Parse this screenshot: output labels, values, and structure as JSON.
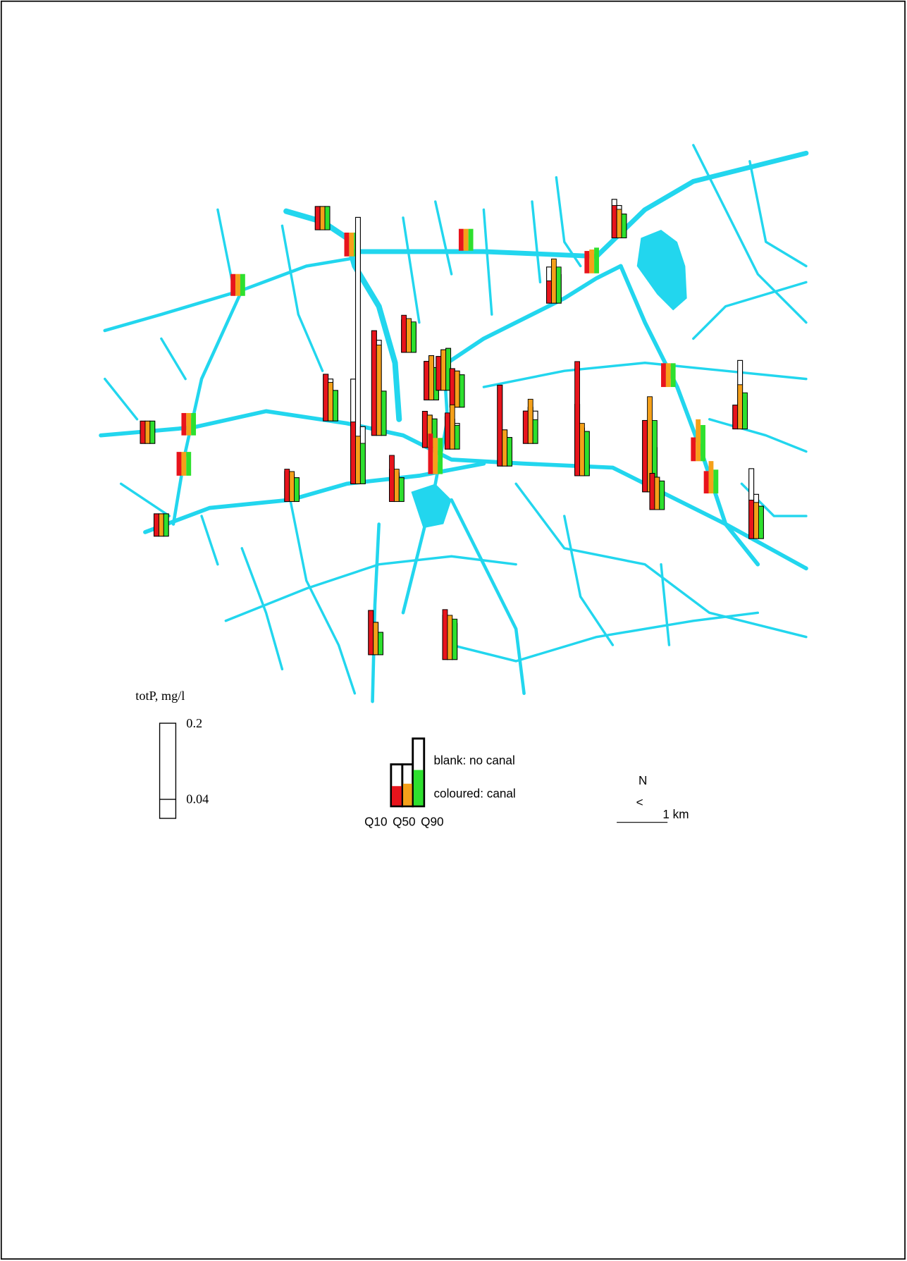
{
  "legend": {
    "title": "totP, mg/l",
    "ticks": [
      0.2,
      0.04
    ]
  },
  "key": {
    "blank": "blank: no canal",
    "coloured": "coloured: canal",
    "quantiles": [
      "Q10",
      "Q50",
      "Q90"
    ],
    "colors": [
      "#e8141c",
      "#f5a01a",
      "#2ee02e"
    ]
  },
  "north": {
    "label": "N",
    "arrow": "<"
  },
  "scale_bar": "1 km",
  "stations": [
    {
      "canal": [
        0.049,
        0.049,
        0.049
      ],
      "no_canal": [
        0.049,
        0.049,
        0.049
      ]
    },
    {
      "canal": [
        0.05,
        0.05,
        0.05
      ]
    },
    {
      "canal": [
        0.046,
        0.046,
        0.046
      ]
    },
    {
      "canal": [
        0.046,
        0.046,
        0.046
      ]
    },
    {
      "canal": [
        0.047,
        0.047,
        0.047
      ],
      "no_canal": [
        0.047,
        0.047,
        0.047
      ]
    },
    {
      "canal": [
        0.047,
        0.047,
        0.047
      ]
    },
    {
      "canal": [
        0.05,
        0.05,
        0.05
      ]
    },
    {
      "canal": [
        0.047,
        0.047,
        0.047
      ],
      "no_canal": [
        0.047,
        0.047,
        0.047
      ]
    },
    {
      "canal": [
        0.047,
        0.093,
        0.076
      ],
      "no_canal": [
        0.076,
        0.068,
        0.06
      ]
    },
    {
      "canal": [
        0.047,
        0.05,
        0.054
      ]
    },
    {
      "canal": [
        0.068,
        0.06,
        0.05
      ],
      "no_canal": [
        0.081,
        0.068,
        0.05
      ]
    },
    {
      "canal": [
        0.078,
        0.071,
        0.064
      ],
      "no_canal": [
        0.068,
        0.064,
        0.061
      ]
    },
    {
      "canal": [
        0.098,
        0.081,
        0.064
      ],
      "no_canal": [
        0.098,
        0.088,
        0.064
      ]
    },
    {
      "canal": [
        0.13,
        0.1,
        0.085
      ],
      "no_canal": [
        0.22,
        0.56,
        0.12
      ]
    },
    {
      "canal": [
        0.22,
        0.19,
        0.093
      ],
      "no_canal": [
        0.22,
        0.2,
        0.093
      ]
    },
    {
      "canal": [
        0.081,
        0.093,
        0.068
      ],
      "no_canal": [
        0.081,
        0.093,
        0.068
      ]
    },
    {
      "canal": [
        0.071,
        0.085,
        0.088
      ],
      "no_canal": [
        0.071,
        0.085,
        0.088
      ]
    },
    {
      "canal": [
        0.081,
        0.076,
        0.068
      ],
      "no_canal": [
        0.081,
        0.076,
        0.068
      ]
    },
    {
      "canal": [
        0.076,
        0.068,
        0.06
      ],
      "no_canal": [
        0.076,
        0.068,
        0.06
      ]
    },
    {
      "canal": [
        0.085,
        0.076,
        0.076
      ]
    },
    {
      "canal": [
        0.076,
        0.093,
        0.05
      ],
      "no_canal": [
        0.068,
        0.063,
        0.054
      ]
    },
    {
      "canal": [
        0.097,
        0.068,
        0.05
      ],
      "no_canal": [
        0.068,
        0.06,
        0.05
      ]
    },
    {
      "canal": [
        0.068,
        0.063,
        0.05
      ],
      "no_canal": [
        0.063,
        0.058,
        0.05
      ]
    },
    {
      "canal": [
        0.17,
        0.076,
        0.06
      ],
      "no_canal": [
        0.17,
        0.076,
        0.06
      ]
    },
    {
      "canal": [
        0.068,
        0.093,
        0.05
      ],
      "no_canal": [
        0.068,
        0.076,
        0.068
      ]
    },
    {
      "canal": [
        0.24,
        0.11,
        0.093
      ],
      "no_canal": [
        0.15,
        0.1,
        0.093
      ]
    },
    {
      "canal": [
        0.05,
        0.05,
        0.05
      ]
    },
    {
      "canal": [
        0.15,
        0.2,
        0.15
      ],
      "no_canal": [
        0.15,
        0.1,
        0.093
      ]
    },
    {
      "canal": [
        0.076,
        0.068,
        0.06
      ],
      "no_canal": [
        0.076,
        0.068,
        0.06
      ]
    },
    {
      "canal": [
        0.05,
        0.088,
        0.076
      ]
    },
    {
      "canal": [
        0.047,
        0.068,
        0.05
      ]
    },
    {
      "canal": [
        0.05,
        0.093,
        0.076
      ],
      "no_canal": [
        0.05,
        0.144,
        0.06
      ]
    },
    {
      "canal": [
        0.081,
        0.076,
        0.068
      ],
      "no_canal": [
        0.147,
        0.093,
        0.068
      ]
    },
    {
      "canal": [
        0.093,
        0.068,
        0.047
      ],
      "no_canal": [
        0.093,
        0.068,
        0.047
      ]
    },
    {
      "canal": [
        0.105,
        0.093,
        0.085
      ],
      "no_canal": [
        0.093,
        0.085,
        0.076
      ]
    }
  ]
}
